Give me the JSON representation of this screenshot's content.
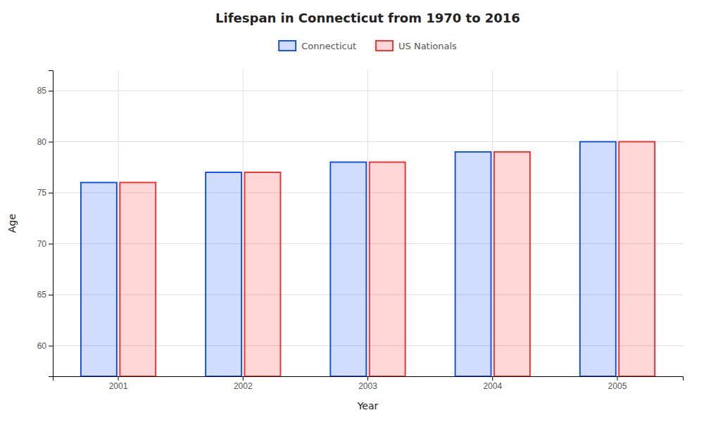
{
  "chart_data": {
    "type": "bar",
    "title": "Lifespan in Connecticut from 1970 to 2016",
    "x_label": "Year",
    "y_label": "Age",
    "categories": [
      "2001",
      "2002",
      "2003",
      "2004",
      "2005"
    ],
    "series": [
      {
        "name": "Connecticut",
        "color": "#0044ff",
        "values": [
          76,
          77,
          78,
          79,
          80
        ]
      },
      {
        "name": "US Nationals",
        "color": "#ff2222",
        "values": [
          76,
          77,
          78,
          79,
          80
        ]
      }
    ],
    "ylim": [
      57,
      87
    ],
    "yticks": [
      60,
      65,
      70,
      75,
      80,
      85
    ],
    "grid": true,
    "legend": "top"
  }
}
